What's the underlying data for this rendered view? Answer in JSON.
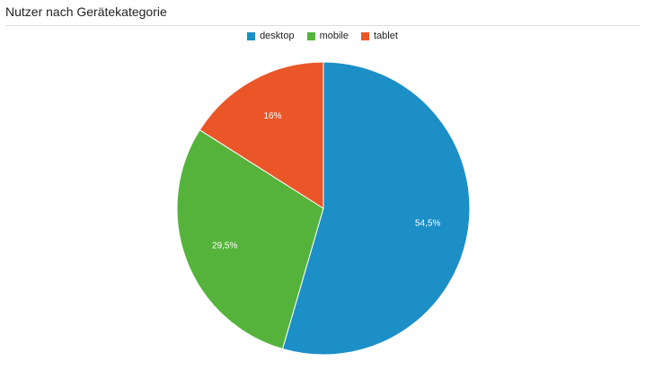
{
  "title": "Nutzer nach Gerätekategorie",
  "chart_data": {
    "type": "pie",
    "title": "Nutzer nach Gerätekategorie",
    "legend_position": "top-center",
    "slices": [
      {
        "name": "desktop",
        "value": 54.5,
        "label": "54,5%",
        "color": "#1b8fc6"
      },
      {
        "name": "mobile",
        "value": 29.5,
        "label": "29,5%",
        "color": "#55b33b"
      },
      {
        "name": "tablet",
        "value": 16,
        "label": "16%",
        "color": "#ea5628"
      }
    ]
  }
}
